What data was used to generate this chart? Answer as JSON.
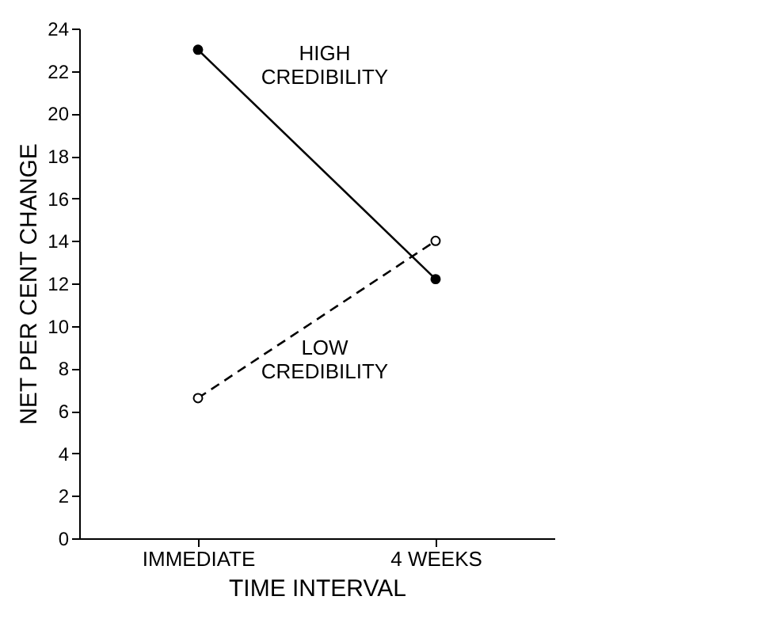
{
  "chart_data": {
    "type": "line",
    "xlabel": "TIME INTERVAL",
    "ylabel": "NET PER CENT CHANGE",
    "categories": [
      "IMMEDIATE",
      "4 WEEKS"
    ],
    "series": [
      {
        "name": "HIGH CREDIBILITY",
        "color": "#000000",
        "values": [
          23,
          12.2
        ],
        "line_style": "solid",
        "marker": "circle"
      },
      {
        "name": "LOW CREDIBILITY",
        "color": "#000000",
        "values": [
          6.6,
          14
        ],
        "line_style": "dashed",
        "marker": "circle"
      }
    ],
    "ylim": [
      0,
      24
    ],
    "yticks": [
      0,
      2,
      4,
      6,
      8,
      10,
      12,
      14,
      16,
      18,
      20,
      22,
      24
    ],
    "grid": false
  }
}
